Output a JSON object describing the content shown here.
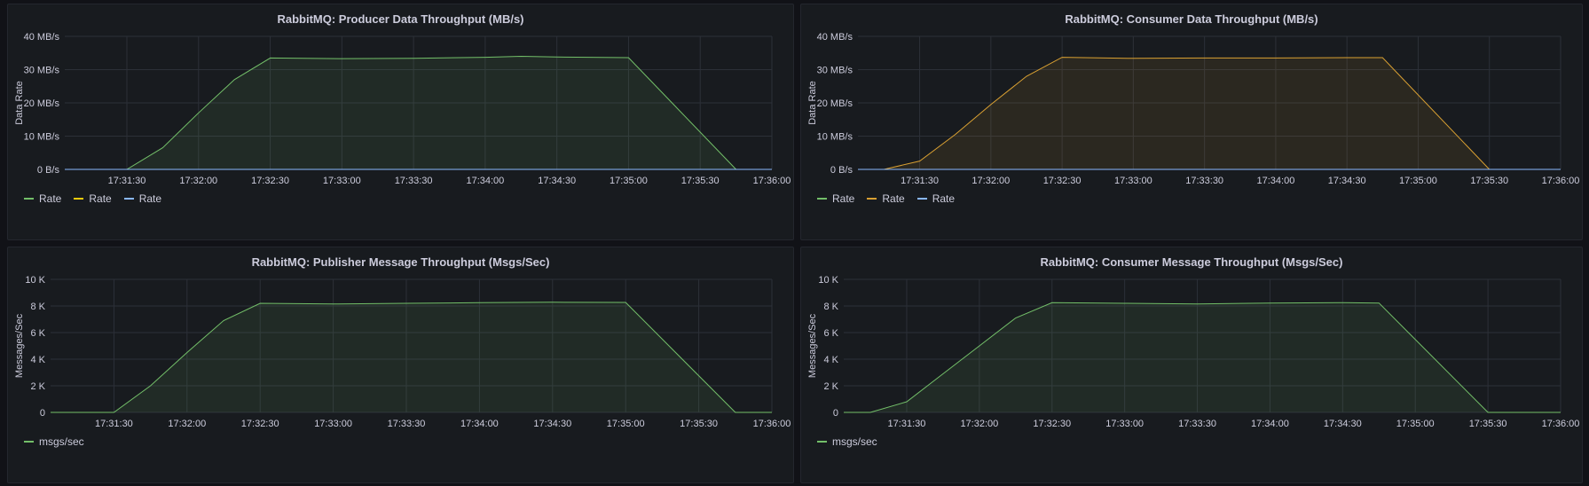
{
  "chart_data": [
    {
      "id": "producer",
      "type": "area",
      "title": "RabbitMQ: Producer Data Throughput (MB/s)",
      "ylabel": "Data Rate",
      "ylim": [
        0,
        40
      ],
      "yticks": [
        0,
        10,
        20,
        30,
        40
      ],
      "ytick_labels": [
        "0 B/s",
        "10 MB/s",
        "20 MB/s",
        "30 MB/s",
        "40 MB/s"
      ],
      "xlim": [
        "17:31:04",
        "17:36:00"
      ],
      "xticks": [
        "17:31:30",
        "17:32:00",
        "17:32:30",
        "17:33:00",
        "17:33:30",
        "17:34:00",
        "17:34:30",
        "17:35:00",
        "17:35:30",
        "17:36:00"
      ],
      "series": [
        {
          "name": "Rate",
          "color": "#73bf69",
          "fill": true,
          "x": [
            "17:31:04",
            "17:31:30",
            "17:31:45",
            "17:32:00",
            "17:32:15",
            "17:32:30",
            "17:33:00",
            "17:33:30",
            "17:34:00",
            "17:34:15",
            "17:34:30",
            "17:35:00",
            "17:35:45",
            "17:36:00"
          ],
          "y": [
            0,
            0,
            6.5,
            17,
            27,
            33.5,
            33.3,
            33.4,
            33.7,
            34.0,
            33.8,
            33.6,
            0,
            0
          ]
        },
        {
          "name": "Rate",
          "color": "#f2cc0c",
          "fill": false,
          "x": [
            "17:31:04",
            "17:36:00"
          ],
          "y": [
            0,
            0
          ]
        },
        {
          "name": "Rate",
          "color": "#8ab8ff",
          "fill": false,
          "x": [
            "17:31:04",
            "17:36:00"
          ],
          "y": [
            0,
            0
          ]
        }
      ]
    },
    {
      "id": "consumer",
      "type": "area",
      "title": "RabbitMQ: Consumer Data Throughput (MB/s)",
      "ylabel": "Data Rate",
      "ylim": [
        0,
        40
      ],
      "yticks": [
        0,
        10,
        20,
        30,
        40
      ],
      "ytick_labels": [
        "0 B/s",
        "10 MB/s",
        "20 MB/s",
        "30 MB/s",
        "40 MB/s"
      ],
      "xlim": [
        "17:31:04",
        "17:36:00"
      ],
      "xticks": [
        "17:31:30",
        "17:32:00",
        "17:32:30",
        "17:33:00",
        "17:33:30",
        "17:34:00",
        "17:34:30",
        "17:35:00",
        "17:35:30",
        "17:36:00"
      ],
      "series": [
        {
          "name": "Rate",
          "color": "#73bf69",
          "fill": false,
          "x": [
            "17:31:04",
            "17:36:00"
          ],
          "y": [
            0,
            0
          ]
        },
        {
          "name": "Rate",
          "color": "#d9a032",
          "fill": true,
          "x": [
            "17:31:04",
            "17:31:15",
            "17:31:30",
            "17:31:45",
            "17:32:00",
            "17:32:15",
            "17:32:30",
            "17:33:00",
            "17:33:30",
            "17:34:00",
            "17:34:30",
            "17:34:45",
            "17:35:30",
            "17:36:00"
          ],
          "y": [
            0,
            0,
            2.5,
            10.5,
            19.5,
            28,
            33.7,
            33.4,
            33.5,
            33.5,
            33.6,
            33.6,
            0,
            0
          ]
        },
        {
          "name": "Rate",
          "color": "#8ab8ff",
          "fill": false,
          "x": [
            "17:31:04",
            "17:36:00"
          ],
          "y": [
            0,
            0
          ]
        }
      ]
    },
    {
      "id": "publisher-msgs",
      "type": "area",
      "title": "RabbitMQ: Publisher Message Throughput (Msgs/Sec)",
      "ylabel": "Messages/Sec",
      "ylim": [
        0,
        10000
      ],
      "yticks": [
        0,
        2000,
        4000,
        6000,
        8000,
        10000
      ],
      "ytick_labels": [
        "0",
        "2 K",
        "4 K",
        "6 K",
        "8 K",
        "10 K"
      ],
      "xlim": [
        "17:31:04",
        "17:36:00"
      ],
      "xticks": [
        "17:31:30",
        "17:32:00",
        "17:32:30",
        "17:33:00",
        "17:33:30",
        "17:34:00",
        "17:34:30",
        "17:35:00",
        "17:35:30",
        "17:36:00"
      ],
      "series": [
        {
          "name": "msgs/sec",
          "color": "#73bf69",
          "fill": true,
          "x": [
            "17:31:04",
            "17:31:30",
            "17:31:45",
            "17:32:00",
            "17:32:15",
            "17:32:30",
            "17:33:00",
            "17:33:30",
            "17:34:00",
            "17:34:30",
            "17:35:00",
            "17:35:45",
            "17:36:00"
          ],
          "y": [
            0,
            0,
            2000,
            4500,
            6900,
            8200,
            8150,
            8200,
            8250,
            8280,
            8270,
            0,
            0
          ]
        }
      ]
    },
    {
      "id": "consumer-msgs",
      "type": "area",
      "title": "RabbitMQ: Consumer Message Throughput (Msgs/Sec)",
      "ylabel": "Messages/Sec",
      "ylim": [
        0,
        10000
      ],
      "yticks": [
        0,
        2000,
        4000,
        6000,
        8000,
        10000
      ],
      "ytick_labels": [
        "0",
        "2 K",
        "4 K",
        "6 K",
        "8 K",
        "10 K"
      ],
      "xlim": [
        "17:31:04",
        "17:36:00"
      ],
      "xticks": [
        "17:31:30",
        "17:32:00",
        "17:32:30",
        "17:33:00",
        "17:33:30",
        "17:34:00",
        "17:34:30",
        "17:35:00",
        "17:35:30",
        "17:36:00"
      ],
      "series": [
        {
          "name": "msgs/sec",
          "color": "#73bf69",
          "fill": true,
          "x": [
            "17:31:04",
            "17:31:15",
            "17:31:30",
            "17:31:45",
            "17:32:00",
            "17:32:15",
            "17:32:30",
            "17:33:00",
            "17:33:30",
            "17:34:00",
            "17:34:30",
            "17:34:45",
            "17:35:30",
            "17:36:00"
          ],
          "y": [
            0,
            0,
            800,
            2900,
            5000,
            7100,
            8250,
            8200,
            8150,
            8220,
            8250,
            8220,
            0,
            0
          ]
        }
      ]
    }
  ]
}
